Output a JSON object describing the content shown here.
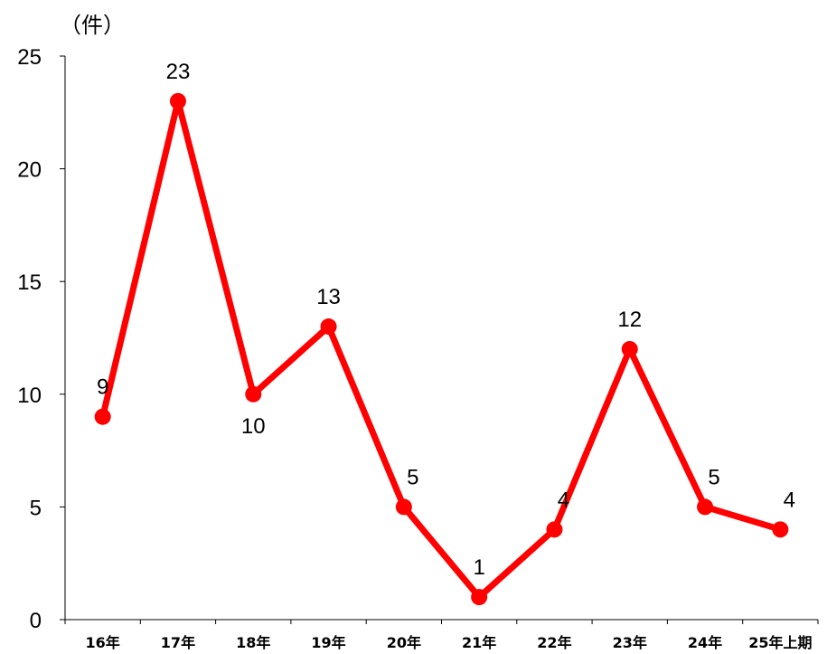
{
  "chart_data": {
    "type": "line",
    "ylabel": "（件）",
    "xlabel": "",
    "categories": [
      "16年",
      "17年",
      "18年",
      "19年",
      "20年",
      "21年",
      "22年",
      "23年",
      "24年",
      "25年上期"
    ],
    "series": [
      {
        "values": [
          9,
          23,
          10,
          13,
          5,
          1,
          4,
          12,
          5,
          4
        ],
        "color": "#ff0000"
      }
    ],
    "data_labels": [
      "9",
      "23",
      "10",
      "13",
      "5",
      "1",
      "4",
      "12",
      "5",
      "4"
    ],
    "ylim": [
      0,
      25
    ],
    "yticks": [
      "0",
      "5",
      "10",
      "15",
      "20",
      "25"
    ],
    "grid": false,
    "legend": "none"
  }
}
